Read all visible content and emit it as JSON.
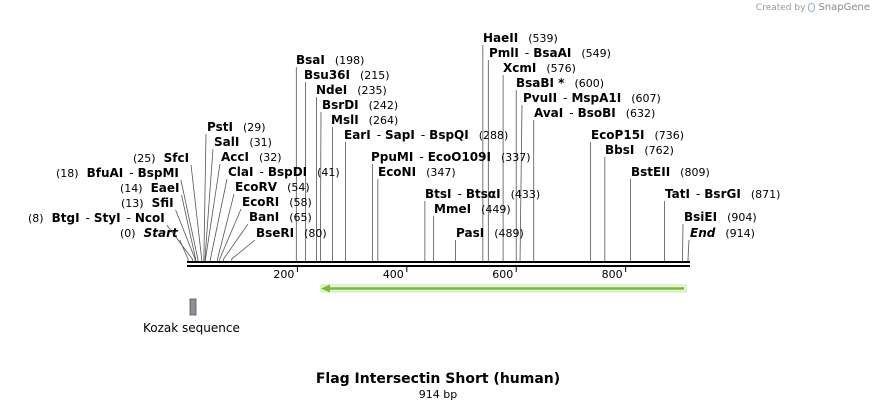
{
  "credit": {
    "prefix": "Created by",
    "brand": "SnapGene"
  },
  "map": {
    "title": "Flag Intersectin Short (human)",
    "length_label": "914 bp",
    "length_bp": 914,
    "axis_ticks": [
      {
        "bp": 200,
        "label": "200"
      },
      {
        "bp": 400,
        "label": "400"
      },
      {
        "bp": 600,
        "label": "600"
      },
      {
        "bp": 800,
        "label": "800"
      }
    ],
    "sites": [
      {
        "names": [
          "Start"
        ],
        "pos": "(0)",
        "bp": 0,
        "italic": true,
        "pos_left": true
      },
      {
        "names": [
          "BtgI",
          "StyI",
          "NcoI"
        ],
        "pos": "(8)",
        "bp": 8,
        "pos_left": true
      },
      {
        "names": [
          "SfiI"
        ],
        "pos": "(13)",
        "bp": 13,
        "pos_left": true
      },
      {
        "names": [
          "EaeI"
        ],
        "pos": "(14)",
        "bp": 14,
        "pos_left": true
      },
      {
        "names": [
          "BfuAI",
          "BspMI"
        ],
        "pos": "(18)",
        "bp": 18,
        "pos_left": true
      },
      {
        "names": [
          "SfcI"
        ],
        "pos": "(25)",
        "bp": 25,
        "pos_left": true
      },
      {
        "names": [
          "PstI"
        ],
        "pos": "(29)",
        "bp": 29
      },
      {
        "names": [
          "SalI"
        ],
        "pos": "(31)",
        "bp": 31
      },
      {
        "names": [
          "AccI"
        ],
        "pos": "(32)",
        "bp": 32
      },
      {
        "names": [
          "ClaI",
          "BspDI"
        ],
        "pos": "(41)",
        "bp": 41
      },
      {
        "names": [
          "EcoRV"
        ],
        "pos": "(54)",
        "bp": 54
      },
      {
        "names": [
          "EcoRI"
        ],
        "pos": "(58)",
        "bp": 58
      },
      {
        "names": [
          "BanI"
        ],
        "pos": "(65)",
        "bp": 65
      },
      {
        "names": [
          "BseRI"
        ],
        "pos": "(80)",
        "bp": 80
      },
      {
        "names": [
          "BsaI"
        ],
        "pos": "(198)",
        "bp": 198
      },
      {
        "names": [
          "Bsu36I"
        ],
        "pos": "(215)",
        "bp": 215
      },
      {
        "names": [
          "NdeI"
        ],
        "pos": "(235)",
        "bp": 235
      },
      {
        "names": [
          "BsrDI"
        ],
        "pos": "(242)",
        "bp": 242
      },
      {
        "names": [
          "MslI"
        ],
        "pos": "(264)",
        "bp": 264
      },
      {
        "names": [
          "EarI",
          "SapI",
          "BspQI"
        ],
        "pos": "(288)",
        "bp": 288
      },
      {
        "names": [
          "PpuMI",
          "EcoO109I"
        ],
        "pos": "(337)",
        "bp": 337
      },
      {
        "names": [
          "EcoNI"
        ],
        "pos": "(347)",
        "bp": 347
      },
      {
        "names": [
          "BtsI",
          "BtsαI"
        ],
        "pos": "(433)",
        "bp": 433
      },
      {
        "names": [
          "MmeI"
        ],
        "pos": "(449)",
        "bp": 449
      },
      {
        "names": [
          "PasI"
        ],
        "pos": "(489)",
        "bp": 489
      },
      {
        "names": [
          "HaeII"
        ],
        "pos": "(539)",
        "bp": 539
      },
      {
        "names": [
          "PmlI",
          "BsaAI"
        ],
        "pos": "(549)",
        "bp": 549
      },
      {
        "names": [
          "XcmI"
        ],
        "pos": "(576)",
        "bp": 576
      },
      {
        "names": [
          "BsaBI *"
        ],
        "pos": "(600)",
        "bp": 600
      },
      {
        "names": [
          "PvuII",
          "MspA1I"
        ],
        "pos": "(607)",
        "bp": 607
      },
      {
        "names": [
          "AvaI",
          "BsoBI"
        ],
        "pos": "(632)",
        "bp": 632
      },
      {
        "names": [
          "EcoP15I"
        ],
        "pos": "(736)",
        "bp": 736
      },
      {
        "names": [
          "BbsI"
        ],
        "pos": "(762)",
        "bp": 762
      },
      {
        "names": [
          "BstEII"
        ],
        "pos": "(809)",
        "bp": 809
      },
      {
        "names": [
          "TatI",
          "BsrGI"
        ],
        "pos": "(871)",
        "bp": 871
      },
      {
        "names": [
          "BsiEI"
        ],
        "pos": "(904)",
        "bp": 904
      },
      {
        "names": [
          "End"
        ],
        "pos": "(914)",
        "bp": 914,
        "italic": true
      }
    ],
    "features": [
      {
        "name": "Kozak sequence",
        "start_bp": 13,
        "end_bp": 20,
        "color": "#8a9099"
      },
      {
        "name": "",
        "start_bp": 243,
        "end_bp": 914,
        "direction": "reverse",
        "color": "#78b93a"
      }
    ]
  }
}
